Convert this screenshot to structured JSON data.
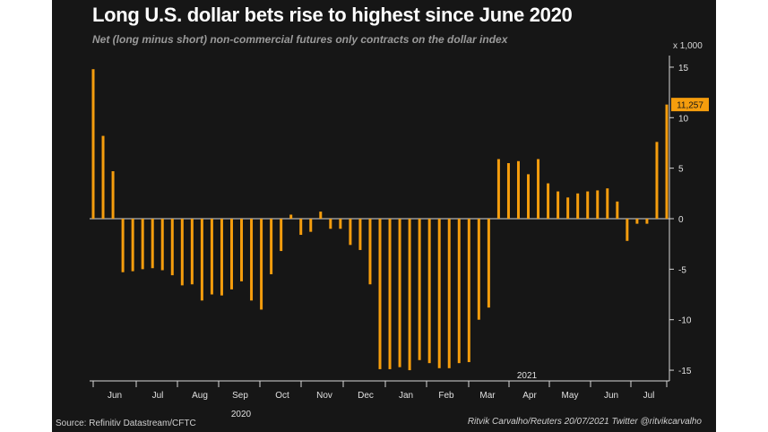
{
  "colors": {
    "background": "#161616",
    "bar": "#f59d0d",
    "text": "#ffffff",
    "subtitle": "#9a9a9a",
    "axis": "#d8d8d8"
  },
  "header": {
    "title": "Long U.S. dollar bets rise to highest since June 2020",
    "subtitle": "Net (long minus short) non-commercial futures only contracts on the dollar index",
    "unit": "x 1,000"
  },
  "footer": {
    "source": "Source: Refinitiv Datastream/CFTC",
    "credit": "Ritvik Carvalho/Reuters 20/07/2021 Twitter @ritvikcarvalho"
  },
  "chart_data": {
    "type": "bar",
    "title": "Long U.S. dollar bets rise to highest since June 2020",
    "subtitle": "Net (long minus short) non-commercial futures only contracts on the dollar index",
    "ylabel": "x 1,000",
    "ylim": [
      -16,
      16
    ],
    "yticks": [
      15,
      10,
      5,
      0,
      -5,
      -10,
      -15
    ],
    "y_axis_side": "right",
    "grid": false,
    "month_labels": [
      "Jun",
      "Jul",
      "Aug",
      "Sep",
      "Oct",
      "Nov",
      "Dec",
      "Jan",
      "Feb",
      "Mar",
      "Apr",
      "May",
      "Jun",
      "Jul"
    ],
    "year_labels": [
      {
        "label": "2020",
        "at_month": "Sep"
      },
      {
        "label": "2021",
        "at_month": "Mar-Apr"
      }
    ],
    "series": [
      {
        "values": [
          14.8,
          8.2,
          4.7,
          -5.3,
          -5.2,
          -5.0,
          -4.9,
          -5.1,
          -5.6,
          -6.6,
          -6.5,
          -8.1,
          -7.5,
          -7.6,
          -7.0,
          -6.2,
          -8.1,
          -9.0,
          -5.5,
          -3.2,
          0.4,
          -1.6,
          -1.3,
          0.7,
          -1.0,
          -1.0,
          -2.6,
          -3.1,
          -6.5,
          -14.9,
          -14.9,
          -14.7,
          -15.0,
          -14.0,
          -14.3,
          -14.8,
          -14.8,
          -14.3,
          -14.2,
          -10.0,
          -8.8,
          5.9,
          5.5,
          5.7,
          4.4,
          5.9,
          3.5,
          2.7,
          2.1,
          2.5,
          2.7,
          2.8,
          3.0,
          1.7,
          -2.2,
          -0.5,
          -0.5,
          7.6,
          11.3
        ]
      }
    ],
    "callout": {
      "value": 11.257,
      "label": "11,257"
    }
  }
}
